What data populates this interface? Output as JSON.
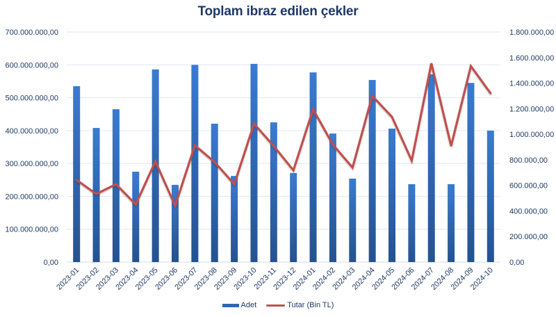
{
  "chart_data": {
    "type": "bar+line",
    "title": "Toplam ibraz edilen çekler",
    "categories": [
      "2023-01",
      "2023-02",
      "2023-03",
      "2023-04",
      "2023-05",
      "2023-06",
      "2023-07",
      "2023-08",
      "2023-09",
      "2023-10",
      "2023-11",
      "2023-12",
      "2024-01",
      "2024-02",
      "2024-03",
      "2024-04",
      "2024-05",
      "2024-06",
      "2024-07",
      "2024-08",
      "2024-09",
      "2024-10"
    ],
    "series": [
      {
        "name": "Adet",
        "type": "bar",
        "axis": "left",
        "color": "#2e67b1",
        "values": [
          535000000,
          408000000,
          465000000,
          275000000,
          586000000,
          235000000,
          600000000,
          421000000,
          262000000,
          603000000,
          425000000,
          271000000,
          577000000,
          391000000,
          254000000,
          554000000,
          406000000,
          237000000,
          571000000,
          237000000,
          545000000,
          400000000
        ]
      },
      {
        "name": "Tutar (Bin TL)",
        "type": "line",
        "axis": "right",
        "color": "#c0504d",
        "values": [
          642000,
          533000,
          609000,
          451000,
          788000,
          440000,
          913000,
          783000,
          609000,
          1082000,
          908000,
          718000,
          1196000,
          919000,
          739000,
          1300000,
          1136000,
          794000,
          1555000,
          908000,
          1533000,
          1321000
        ]
      }
    ],
    "left_axis": {
      "min": 0,
      "max": 700000000,
      "step": 100000000,
      "tick_labels": [
        "0,00",
        "100.000.000,00",
        "200.000.000,00",
        "300.000.000,00",
        "400.000.000,00",
        "500.000.000,00",
        "600.000.000,00",
        "700.000.000,00"
      ]
    },
    "right_axis": {
      "min": 0,
      "max": 1800000,
      "step": 200000,
      "tick_labels": [
        "0,00",
        "200.000,00",
        "400.000,00",
        "600.000,00",
        "800.000,00",
        "1.000.000,00",
        "1.200.000,00",
        "1.400.000,00",
        "1.600.000,00",
        "1.800.000,00"
      ]
    },
    "xlabel": "",
    "ylabel": "",
    "grid": true,
    "legend_position": "bottom"
  },
  "legend": {
    "bar_label": "Adet",
    "line_label": "Tutar (Bin TL)"
  }
}
